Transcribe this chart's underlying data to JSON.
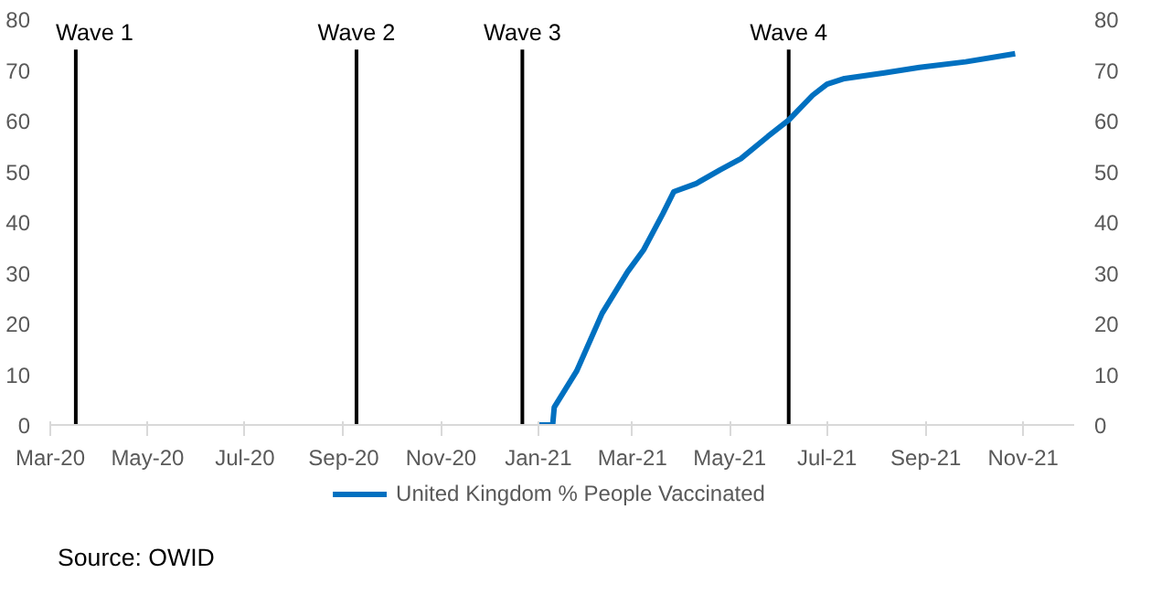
{
  "chart_data": {
    "type": "line",
    "x": [
      "2021-01-01",
      "2021-01-10",
      "2021-01-11",
      "2021-01-25",
      "2021-02-10",
      "2021-02-26",
      "2021-03-08",
      "2021-03-20",
      "2021-03-27",
      "2021-04-10",
      "2021-04-25",
      "2021-05-08",
      "2021-05-25",
      "2021-06-07",
      "2021-06-22",
      "2021-07-01",
      "2021-07-12",
      "2021-08-06",
      "2021-08-28",
      "2021-09-26",
      "2021-10-27"
    ],
    "series": [
      {
        "name": "United Kingdom % People Vaccinated",
        "color": "#0070c0",
        "values": [
          0,
          0,
          3.5,
          10.6,
          22,
          30.2,
          34.5,
          41.6,
          46,
          47.6,
          50.3,
          52.5,
          56.9,
          60.1,
          65,
          67.2,
          68.3,
          69.4,
          70.5,
          71.6,
          73.2
        ]
      }
    ],
    "xlim": [
      "2020-03-01",
      "2021-12-03"
    ],
    "xticks": [
      {
        "value": "2020-03-01",
        "label": "Mar-20"
      },
      {
        "value": "2020-05-01",
        "label": "May-20"
      },
      {
        "value": "2020-07-01",
        "label": "Jul-20"
      },
      {
        "value": "2020-09-01",
        "label": "Sep-20"
      },
      {
        "value": "2020-11-01",
        "label": "Nov-20"
      },
      {
        "value": "2021-01-01",
        "label": "Jan-21"
      },
      {
        "value": "2021-03-01",
        "label": "Mar-21"
      },
      {
        "value": "2021-05-01",
        "label": "May-21"
      },
      {
        "value": "2021-07-01",
        "label": "Jul-21"
      },
      {
        "value": "2021-09-01",
        "label": "Sep-21"
      },
      {
        "value": "2021-11-01",
        "label": "Nov-21"
      }
    ],
    "ylim": [
      0,
      80
    ],
    "yticks": [
      0,
      10,
      20,
      30,
      40,
      50,
      60,
      70,
      80
    ],
    "y2lim": [
      0,
      80
    ],
    "y2ticks": [
      0,
      10,
      20,
      30,
      40,
      50,
      60,
      70,
      80
    ],
    "ref_lines": [
      {
        "axis": "x",
        "value": "2020-03-17",
        "label": "Wave 1",
        "color": "#000000"
      },
      {
        "axis": "x",
        "value": "2020-09-09",
        "label": "Wave 2",
        "color": "#000000"
      },
      {
        "axis": "x",
        "value": "2020-12-22",
        "label": "Wave 3",
        "color": "#000000"
      },
      {
        "axis": "x",
        "value": "2021-06-07",
        "label": "Wave 4",
        "color": "#000000"
      }
    ],
    "annotations": [
      "Source: OWID"
    ],
    "legend": "bottom",
    "grid": false,
    "marker": "none",
    "line_style": "solid"
  }
}
